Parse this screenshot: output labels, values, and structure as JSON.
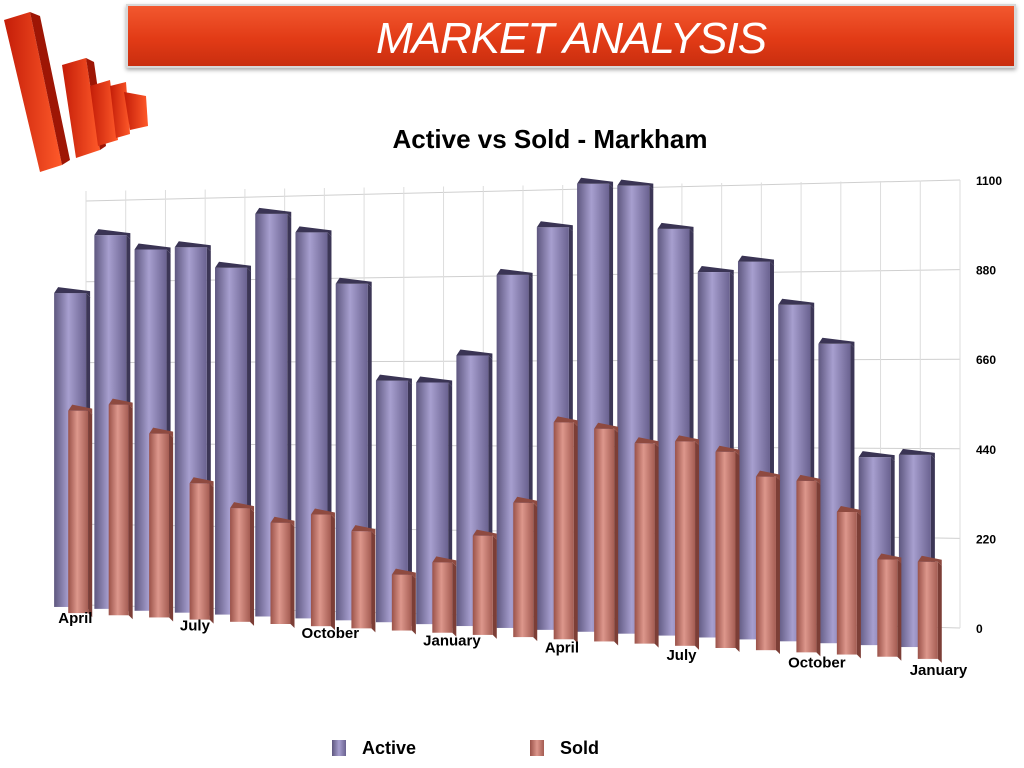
{
  "banner": {
    "title": "MARKET ANALYSIS"
  },
  "chart_data": {
    "type": "bar",
    "title": "Active vs Sold - Markham",
    "xlabel": "",
    "ylabel": "",
    "ylim": [
      0,
      1100
    ],
    "yticks": [
      0,
      220,
      440,
      660,
      880,
      1100
    ],
    "grid": true,
    "legend_position": "bottom",
    "x_tick_labels": [
      {
        "index": 0,
        "label": "April"
      },
      {
        "index": 3,
        "label": "July"
      },
      {
        "index": 6,
        "label": "October"
      },
      {
        "index": 9,
        "label": "January"
      },
      {
        "index": 12,
        "label": "April"
      },
      {
        "index": 15,
        "label": "July"
      },
      {
        "index": 18,
        "label": "October"
      },
      {
        "index": 21,
        "label": "January"
      }
    ],
    "series": [
      {
        "name": "Active",
        "color": "#8a82b0",
        "values": [
          775,
          920,
          890,
          900,
          855,
          990,
          950,
          830,
          600,
          600,
          670,
          870,
          990,
          1100,
          1100,
          1000,
          900,
          930,
          830,
          740,
          470,
          480
        ]
      },
      {
        "name": "Sold",
        "color": "#c97b70",
        "values": [
          505,
          525,
          460,
          345,
          290,
          260,
          285,
          250,
          150,
          185,
          255,
          340,
          540,
          530,
          500,
          510,
          490,
          435,
          430,
          360,
          250,
          250
        ]
      }
    ]
  }
}
